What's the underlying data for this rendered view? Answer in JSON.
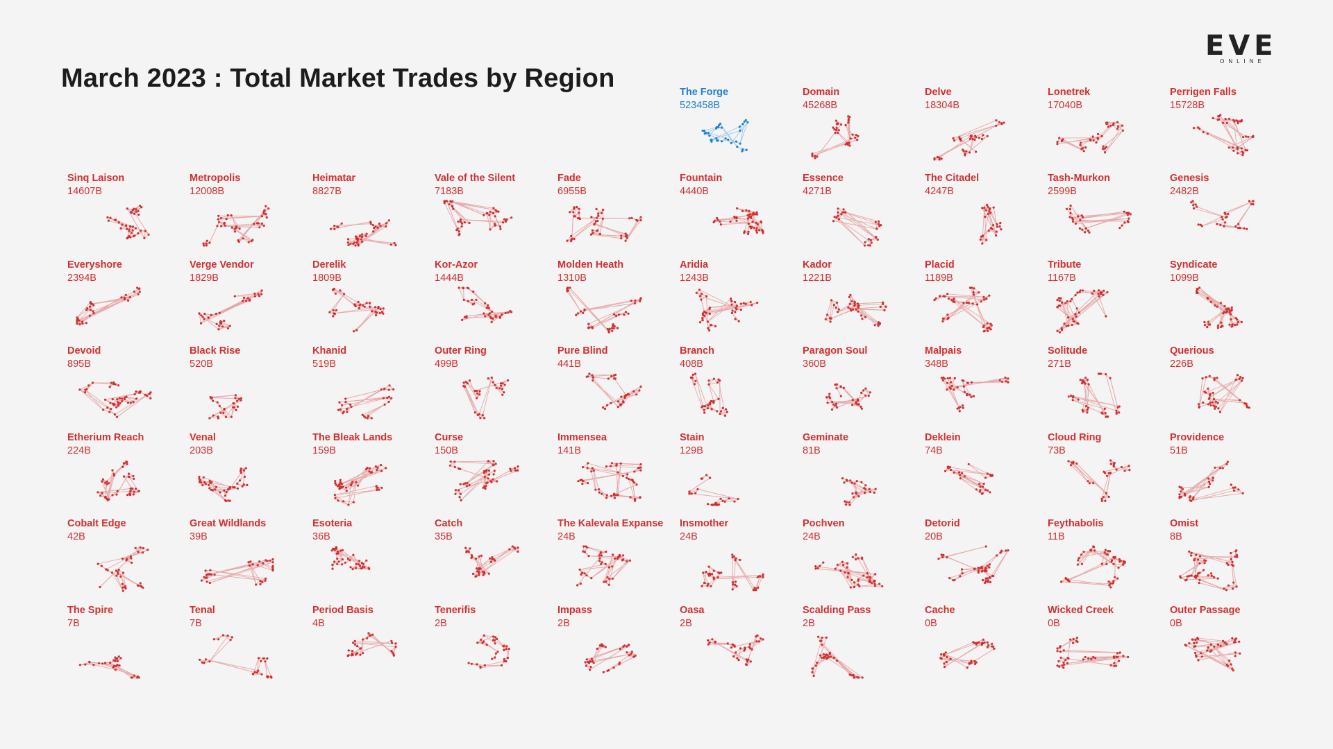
{
  "title": "March 2023 : Total Market Trades by Region",
  "logo": {
    "main": "EVE",
    "sub": "ONLINE"
  },
  "colors": {
    "default": "#d32f2f",
    "highlight": "#1e7fd6",
    "link": "#e8a8a8",
    "link_highlight": "#9cc8ee",
    "background": "#f4f4f4",
    "title": "#1c1c1c"
  },
  "regions": [
    {
      "name": "The Forge",
      "value": "523458B",
      "highlight": true
    },
    {
      "name": "Domain",
      "value": "45268B"
    },
    {
      "name": "Delve",
      "value": "18304B"
    },
    {
      "name": "Lonetrek",
      "value": "17040B"
    },
    {
      "name": "Perrigen Falls",
      "value": "15728B"
    },
    {
      "name": "Sinq Laison",
      "value": "14607B"
    },
    {
      "name": "Metropolis",
      "value": "12008B"
    },
    {
      "name": "Heimatar",
      "value": "8827B"
    },
    {
      "name": "Vale of the Silent",
      "value": "7183B"
    },
    {
      "name": "Fade",
      "value": "6955B"
    },
    {
      "name": "Fountain",
      "value": "4440B"
    },
    {
      "name": "Essence",
      "value": "4271B"
    },
    {
      "name": "The Citadel",
      "value": "4247B"
    },
    {
      "name": "Tash-Murkon",
      "value": "2599B"
    },
    {
      "name": "Genesis",
      "value": "2482B"
    },
    {
      "name": "Everyshore",
      "value": "2394B"
    },
    {
      "name": "Verge Vendor",
      "value": "1829B"
    },
    {
      "name": "Derelik",
      "value": "1809B"
    },
    {
      "name": "Kor-Azor",
      "value": "1444B"
    },
    {
      "name": "Molden Heath",
      "value": "1310B"
    },
    {
      "name": "Aridia",
      "value": "1243B"
    },
    {
      "name": "Kador",
      "value": "1221B"
    },
    {
      "name": "Placid",
      "value": "1189B"
    },
    {
      "name": "Tribute",
      "value": "1167B"
    },
    {
      "name": "Syndicate",
      "value": "1099B"
    },
    {
      "name": "Devoid",
      "value": "895B"
    },
    {
      "name": "Black Rise",
      "value": "520B"
    },
    {
      "name": "Khanid",
      "value": "519B"
    },
    {
      "name": "Outer Ring",
      "value": "499B"
    },
    {
      "name": "Pure Blind",
      "value": "441B"
    },
    {
      "name": "Branch",
      "value": "408B"
    },
    {
      "name": "Paragon Soul",
      "value": "360B"
    },
    {
      "name": "Malpais",
      "value": "348B"
    },
    {
      "name": "Solitude",
      "value": "271B"
    },
    {
      "name": "Querious",
      "value": "226B"
    },
    {
      "name": "Etherium Reach",
      "value": "224B"
    },
    {
      "name": "Venal",
      "value": "203B"
    },
    {
      "name": "The Bleak Lands",
      "value": "159B"
    },
    {
      "name": "Curse",
      "value": "150B"
    },
    {
      "name": "Immensea",
      "value": "141B"
    },
    {
      "name": "Stain",
      "value": "129B"
    },
    {
      "name": "Geminate",
      "value": "81B"
    },
    {
      "name": "Deklein",
      "value": "74B"
    },
    {
      "name": "Cloud Ring",
      "value": "73B"
    },
    {
      "name": "Providence",
      "value": "51B"
    },
    {
      "name": "Cobalt Edge",
      "value": "42B"
    },
    {
      "name": "Great Wildlands",
      "value": "39B"
    },
    {
      "name": "Esoteria",
      "value": "36B"
    },
    {
      "name": "Catch",
      "value": "35B"
    },
    {
      "name": "The Kalevala Expanse",
      "value": "24B"
    },
    {
      "name": "Insmother",
      "value": "24B"
    },
    {
      "name": "Pochven",
      "value": "24B"
    },
    {
      "name": "Detorid",
      "value": "20B"
    },
    {
      "name": "Feythabolis",
      "value": "11B"
    },
    {
      "name": "Omist",
      "value": "8B"
    },
    {
      "name": "The Spire",
      "value": "7B"
    },
    {
      "name": "Tenal",
      "value": "7B"
    },
    {
      "name": "Period Basis",
      "value": "4B"
    },
    {
      "name": "Tenerifis",
      "value": "2B"
    },
    {
      "name": "Impass",
      "value": "2B"
    },
    {
      "name": "Oasa",
      "value": "2B"
    },
    {
      "name": "Scalding Pass",
      "value": "2B"
    },
    {
      "name": "Cache",
      "value": "0B"
    },
    {
      "name": "Wicked Creek",
      "value": "0B"
    },
    {
      "name": "Outer Passage",
      "value": "0B"
    }
  ]
}
